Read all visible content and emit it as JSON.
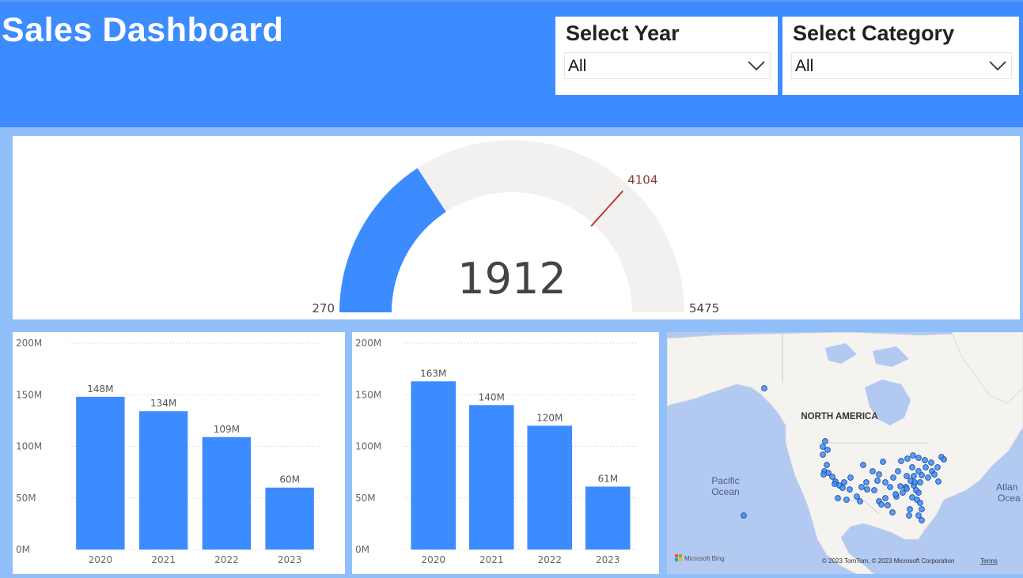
{
  "header": {
    "title": "Sales Dashboard"
  },
  "filters": {
    "year": {
      "label": "Select Year",
      "value": "All"
    },
    "category": {
      "label": "Select Category",
      "value": "All"
    }
  },
  "gauge": {
    "value": "1912",
    "min": "270",
    "max": "5475",
    "target": "4104",
    "color": "#3d8cff",
    "target_color": "#c0392b"
  },
  "chart_data": [
    {
      "type": "bar",
      "categories": [
        "2020",
        "2021",
        "2022",
        "2023"
      ],
      "values": [
        148,
        134,
        109,
        60
      ],
      "data_labels": [
        "148M",
        "134M",
        "109M",
        "60M"
      ],
      "ylim": [
        0,
        200
      ],
      "yticks": [
        "0M",
        "50M",
        "100M",
        "150M",
        "200M"
      ],
      "grid": true,
      "color": "#3d8cff"
    },
    {
      "type": "bar",
      "categories": [
        "2020",
        "2021",
        "2022",
        "2023"
      ],
      "values": [
        163,
        140,
        120,
        61
      ],
      "data_labels": [
        "163M",
        "140M",
        "120M",
        "61M"
      ],
      "ylim": [
        0,
        200
      ],
      "yticks": [
        "0M",
        "50M",
        "100M",
        "150M",
        "200M"
      ],
      "grid": true,
      "color": "#3d8cff"
    }
  ],
  "map": {
    "region_label": "NORTH AMERICA",
    "ocean_left": [
      "Pacific",
      "Ocean"
    ],
    "ocean_right": [
      "Atlan",
      "Ocea"
    ],
    "attribution": "© 2023 TomTom, © 2023 Microsoft Corporation",
    "terms": "Terms",
    "bing": "Microsoft Bing"
  }
}
